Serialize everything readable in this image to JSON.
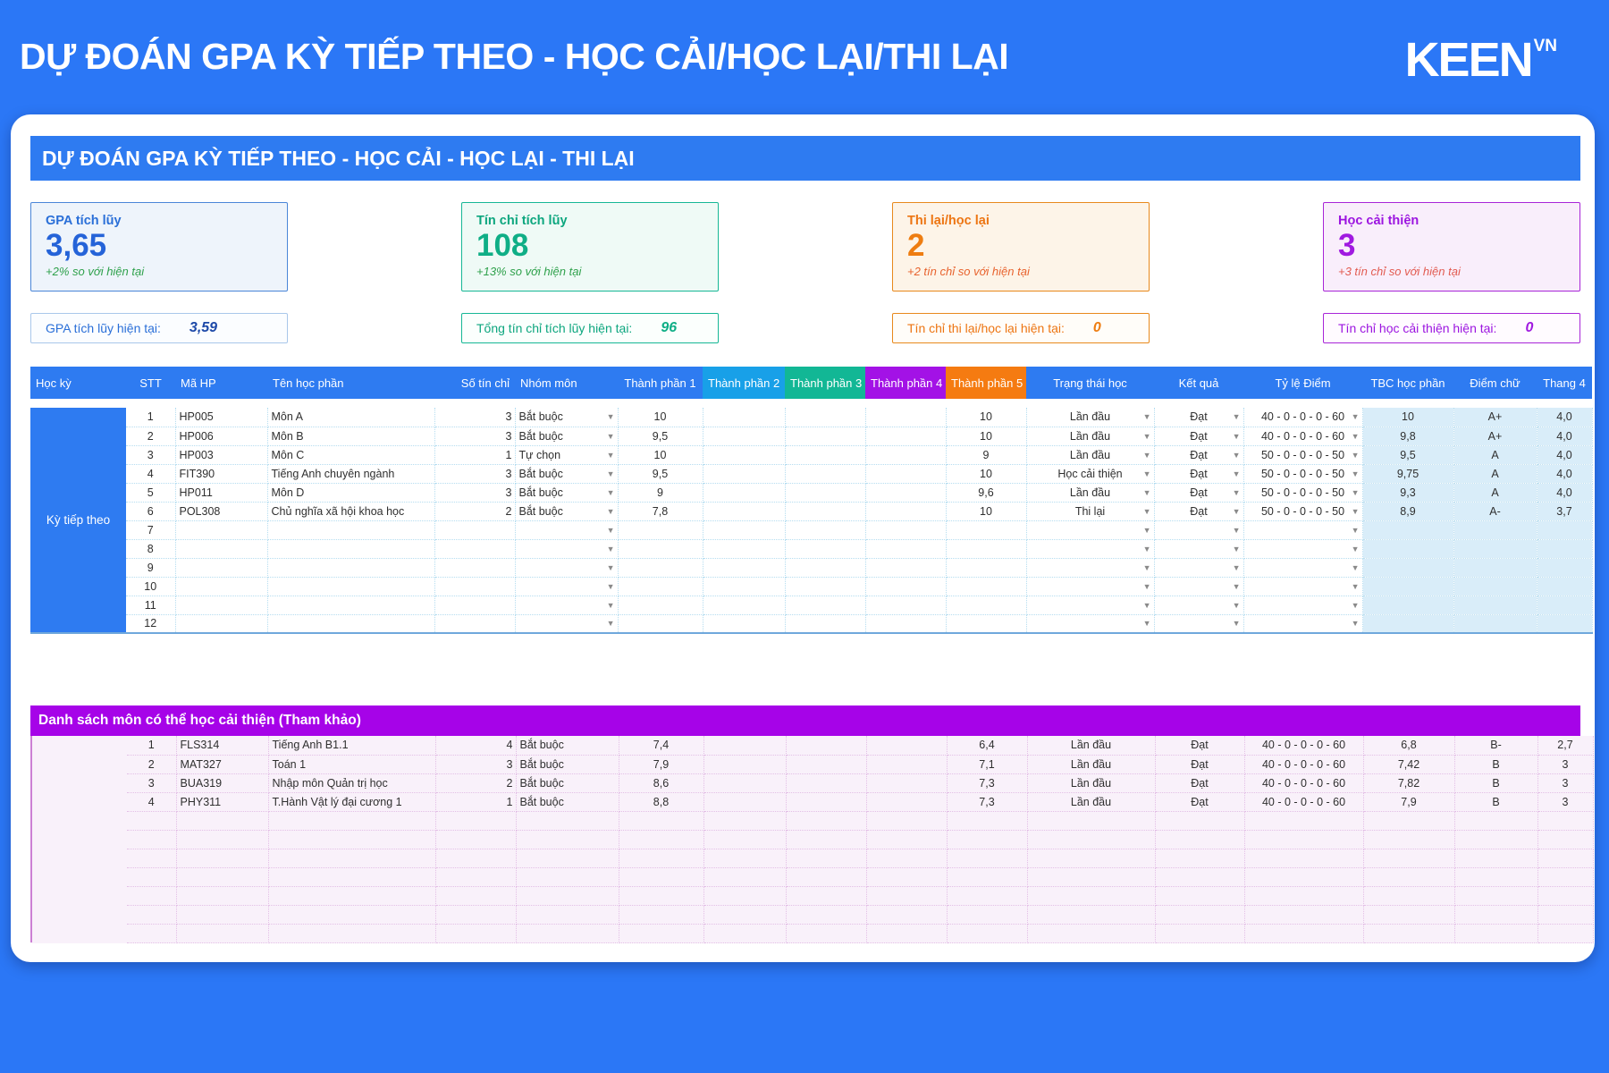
{
  "header": {
    "title": "DỰ ĐOÁN GPA KỲ TIẾP THEO - HỌC CẢI/HỌC LẠI/THI LẠI",
    "logo": "KEEN",
    "logo_sup": "VN"
  },
  "section_title": "DỰ ĐOÁN GPA KỲ TIẾP THEO - HỌC CẢI - HỌC LẠI - THI LẠI",
  "colors": {
    "accent_blue": "#2e7bf1",
    "tp2": "#18a0e8",
    "tp3": "#12b795",
    "tp4": "#a312e6",
    "tp5": "#f57b11",
    "improve_banner": "#a603e8",
    "computed_col_bg": "#d9edf9"
  },
  "stat_cards": [
    {
      "label": "GPA tích lũy",
      "value": "3,65",
      "subtitle": "+2% so với hiện tại"
    },
    {
      "label": "Tín chỉ tích lũy",
      "value": "108",
      "subtitle": "+13% so với hiện tại"
    },
    {
      "label": "Thi lại/học lại",
      "value": "2",
      "subtitle": "+2 tín chỉ so với hiện tại"
    },
    {
      "label": "Học cải thiện",
      "value": "3",
      "subtitle": "+3 tín chỉ so với hiện tại"
    }
  ],
  "current_stats": [
    {
      "label": "GPA tích lũy hiện tại:",
      "value": "3,59"
    },
    {
      "label": "Tổng tín chỉ tích lũy hiện tại:",
      "value": "96"
    },
    {
      "label": "Tín chỉ thi lại/học lại hiện tại:",
      "value": "0"
    },
    {
      "label": "Tín chỉ học cải thiện hiện tại:",
      "value": "0"
    }
  ],
  "table": {
    "columns": [
      "Học kỳ",
      "STT",
      "Mã HP",
      "Tên học phần",
      "Số tín chỉ",
      "Nhóm môn",
      "Thành phần 1",
      "Thành phần 2",
      "Thành phần 3",
      "Thành phần 4",
      "Thành phần 5",
      "Trạng thái học",
      "Kết quả",
      "Tỷ lệ Điểm",
      "TBC học phần",
      "Điểm chữ",
      "Thang 4"
    ],
    "semester_label": "Kỳ tiếp theo",
    "rows": [
      {
        "stt": "1",
        "ma": "HP005",
        "ten": "Môn A",
        "tin": "3",
        "nhom": "Bắt buộc",
        "tp1": "10",
        "tp5": "10",
        "trangthai": "Lần đầu",
        "ketqua": "Đạt",
        "tyle": "40 - 0 - 0 - 0 - 60",
        "tbc": "10",
        "chu": "A+",
        "thang4": "4,0"
      },
      {
        "stt": "2",
        "ma": "HP006",
        "ten": "Môn B",
        "tin": "3",
        "nhom": "Bắt buộc",
        "tp1": "9,5",
        "tp5": "10",
        "trangthai": "Lần đầu",
        "ketqua": "Đạt",
        "tyle": "40 - 0 - 0 - 0 - 60",
        "tbc": "9,8",
        "chu": "A+",
        "thang4": "4,0"
      },
      {
        "stt": "3",
        "ma": "HP003",
        "ten": "Môn C",
        "tin": "1",
        "nhom": "Tự chọn",
        "tp1": "10",
        "tp5": "9",
        "trangthai": "Lần đầu",
        "ketqua": "Đạt",
        "tyle": "50 - 0 - 0 - 0 - 50",
        "tbc": "9,5",
        "chu": "A",
        "thang4": "4,0"
      },
      {
        "stt": "4",
        "ma": "FIT390",
        "ten": "Tiếng Anh chuyên ngành",
        "tin": "3",
        "nhom": "Bắt buộc",
        "tp1": "9,5",
        "tp5": "10",
        "trangthai": "Học cải thiện",
        "ketqua": "Đạt",
        "tyle": "50 - 0 - 0 - 0 - 50",
        "tbc": "9,75",
        "chu": "A",
        "thang4": "4,0"
      },
      {
        "stt": "5",
        "ma": "HP011",
        "ten": "Môn D",
        "tin": "3",
        "nhom": "Bắt buộc",
        "tp1": "9",
        "tp5": "9,6",
        "trangthai": "Lần đầu",
        "ketqua": "Đạt",
        "tyle": "50 - 0 - 0 - 0 - 50",
        "tbc": "9,3",
        "chu": "A",
        "thang4": "4,0"
      },
      {
        "stt": "6",
        "ma": "POL308",
        "ten": "Chủ nghĩa xã hội khoa học",
        "tin": "2",
        "nhom": "Bắt buộc",
        "tp1": "7,8",
        "tp5": "10",
        "trangthai": "Thi lại",
        "ketqua": "Đạt",
        "tyle": "50 - 0 - 0 - 0 - 50",
        "tbc": "8,9",
        "chu": "A-",
        "thang4": "3,7"
      },
      {
        "stt": "7"
      },
      {
        "stt": "8"
      },
      {
        "stt": "9"
      },
      {
        "stt": "10"
      },
      {
        "stt": "11"
      },
      {
        "stt": "12"
      }
    ]
  },
  "improve_section": {
    "title": "Danh sách môn có thể học cải thiện (Tham khảo)",
    "rows": [
      {
        "stt": "1",
        "ma": "FLS314",
        "ten": "Tiếng Anh B1.1",
        "tin": "4",
        "nhom": "Bắt buộc",
        "tp1": "7,4",
        "tp5": "6,4",
        "trangthai": "Lần đầu",
        "ketqua": "Đạt",
        "tyle": "40 - 0 - 0 - 0 - 60",
        "tbc": "6,8",
        "chu": "B-",
        "thang4": "2,7"
      },
      {
        "stt": "2",
        "ma": "MAT327",
        "ten": "Toán 1",
        "tin": "3",
        "nhom": "Bắt buộc",
        "tp1": "7,9",
        "tp5": "7,1",
        "trangthai": "Lần đầu",
        "ketqua": "Đạt",
        "tyle": "40 - 0 - 0 - 0 - 60",
        "tbc": "7,42",
        "chu": "B",
        "thang4": "3"
      },
      {
        "stt": "3",
        "ma": "BUA319",
        "ten": "Nhập môn Quản trị học",
        "tin": "2",
        "nhom": "Bắt buộc",
        "tp1": "8,6",
        "tp5": "7,3",
        "trangthai": "Lần đầu",
        "ketqua": "Đạt",
        "tyle": "40 - 0 - 0 - 0 - 60",
        "tbc": "7,82",
        "chu": "B",
        "thang4": "3"
      },
      {
        "stt": "4",
        "ma": "PHY311",
        "ten": "T.Hành Vật lý đại cương 1",
        "tin": "1",
        "nhom": "Bắt buộc",
        "tp1": "8,8",
        "tp5": "7,3",
        "trangthai": "Lần đầu",
        "ketqua": "Đạt",
        "tyle": "40 - 0 - 0 - 0 - 60",
        "tbc": "7,9",
        "chu": "B",
        "thang4": "3"
      }
    ],
    "empty_rows": 7
  }
}
